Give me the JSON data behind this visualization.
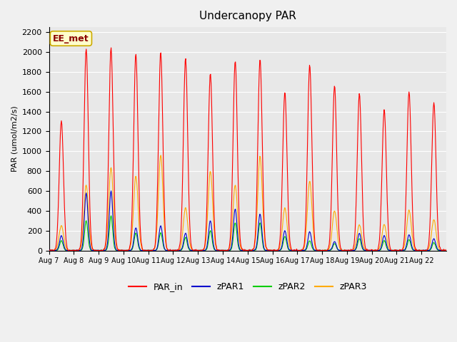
{
  "title": "Undercanopy PAR",
  "ylabel": "PAR (umol/m2/s)",
  "ylim": [
    0,
    2250
  ],
  "yticks": [
    0,
    200,
    400,
    600,
    800,
    1000,
    1200,
    1400,
    1600,
    1800,
    2000,
    2200
  ],
  "plot_bg_color": "#e8e8e8",
  "fig_bg_color": "#f0f0f0",
  "annotation_text": "EE_met",
  "annotation_bg": "#ffffcc",
  "annotation_border": "#ccaa00",
  "series_colors": {
    "PAR_in": "#ff0000",
    "zPAR1": "#0000cc",
    "zPAR2": "#00cc00",
    "zPAR3": "#ffaa00"
  },
  "legend_labels": [
    "PAR_in",
    "zPAR1",
    "zPAR2",
    "zPAR3"
  ],
  "n_days": 16,
  "xtick_labels": [
    "Aug 7",
    "Aug 8",
    "Aug 9",
    "Aug 10",
    "Aug 11",
    "Aug 12",
    "Aug 13",
    "Aug 14",
    "Aug 15",
    "Aug 16",
    "Aug 17",
    "Aug 18",
    "Aug 19",
    "Aug 20",
    "Aug 21",
    "Aug 22"
  ],
  "daily_peaks_PAR_in": [
    1310,
    2030,
    2040,
    1980,
    2000,
    1940,
    1780,
    1910,
    1930,
    1600,
    1870,
    1660,
    1580,
    1420,
    1600,
    1490
  ],
  "daily_peaks_zPAR1": [
    150,
    580,
    600,
    230,
    250,
    175,
    300,
    420,
    370,
    200,
    190,
    90,
    175,
    150,
    160,
    120
  ],
  "daily_peaks_zPAR2": [
    100,
    300,
    350,
    175,
    180,
    130,
    200,
    280,
    280,
    140,
    100,
    70,
    120,
    100,
    110,
    80
  ],
  "daily_peaks_zPAR3": [
    250,
    660,
    840,
    750,
    960,
    430,
    800,
    660,
    950,
    430,
    700,
    400,
    260,
    260,
    410,
    310
  ]
}
